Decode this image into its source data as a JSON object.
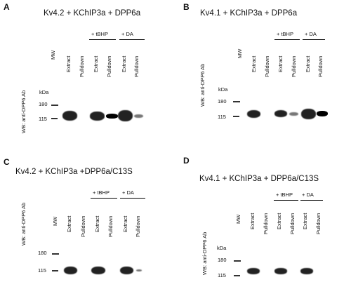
{
  "panels": {
    "A": {
      "letter": "A",
      "title": "Kv4.2 + KChIP3a + DPP6a",
      "ylabel": "WB: anti-DPP6 Ab",
      "kda": "kDa",
      "markers": [
        "180",
        "115"
      ],
      "conditions": [
        "+ tBHP",
        "+ DA"
      ],
      "lanes": [
        "MW",
        "Extract",
        "Pulldown",
        "Extract",
        "Pulldown",
        "Extract",
        "Pulldown"
      ]
    },
    "B": {
      "letter": "B",
      "title": "Kv4.1 + KChIP3a + DPP6a",
      "ylabel": "WB: anti-DPP6 Ab",
      "kda": "kDa",
      "markers": [
        "180",
        "115"
      ],
      "conditions": [
        "+ tBHP",
        "+ DA"
      ],
      "lanes": [
        "MW",
        "Extract",
        "Pulldown",
        "Extract",
        "Pulldown",
        "Extract",
        "Pulldown"
      ]
    },
    "C": {
      "letter": "C",
      "title": "Kv4.2 + KChIP3a +DPP6a/C13S",
      "ylabel": "WB: anti-DPP6 Ab",
      "kda": "kDa",
      "markers": [
        "180",
        "115"
      ],
      "conditions": [
        "+ tBHP",
        "+ DA"
      ],
      "lanes": [
        "MW",
        "Extract",
        "Pulldown",
        "Extract",
        "Pulldown",
        "Extract",
        "Pulldown"
      ]
    },
    "D": {
      "letter": "D",
      "title": "Kv4.1 + KChIP3a + DPP6a/C13S",
      "ylabel": "WB: anti-DPP6 Ab",
      "kda": "kDa",
      "markers": [
        "180",
        "115"
      ],
      "conditions": [
        "+ tBHP",
        "+ DA"
      ],
      "lanes": [
        "MW",
        "Extract",
        "Pulldown",
        "Extract",
        "Pulldown",
        "Extract",
        "Pulldown"
      ]
    }
  }
}
